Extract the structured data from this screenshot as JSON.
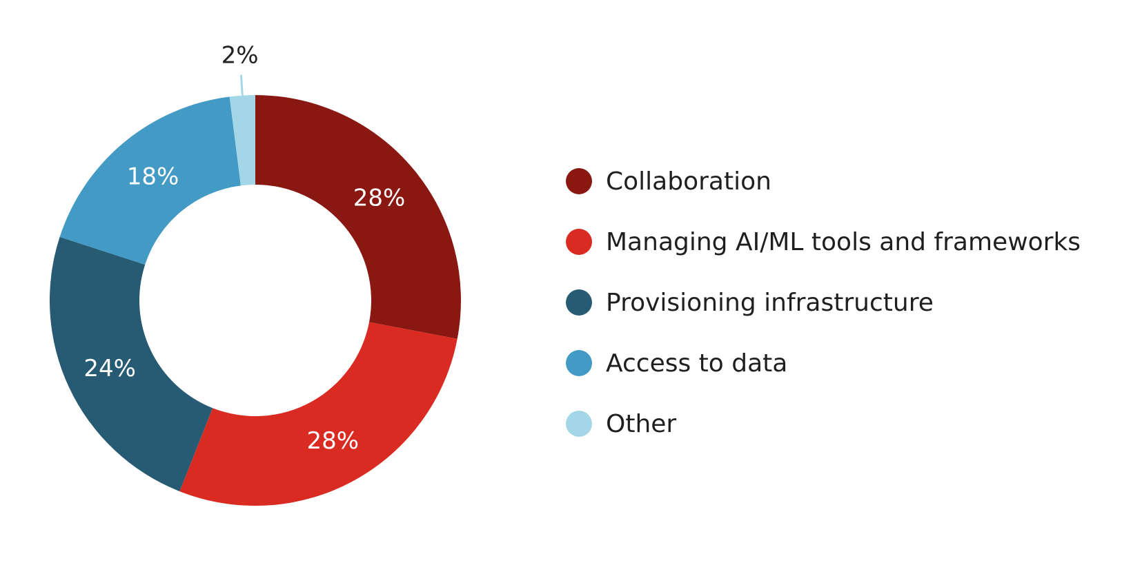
{
  "chart_data": {
    "type": "pie",
    "donut": true,
    "categories": [
      "Collaboration",
      "Managing AI/ML tools and frameworks",
      "Provisioning infrastructure",
      "Access to data",
      "Other"
    ],
    "values": [
      28,
      28,
      24,
      18,
      2
    ],
    "value_labels": [
      "28%",
      "28%",
      "24%",
      "18%",
      "2%"
    ],
    "colors": [
      "#8a1812",
      "#d92b22",
      "#275b73",
      "#439ac4",
      "#a3d6e6"
    ],
    "legend_position": "right",
    "title": ""
  }
}
